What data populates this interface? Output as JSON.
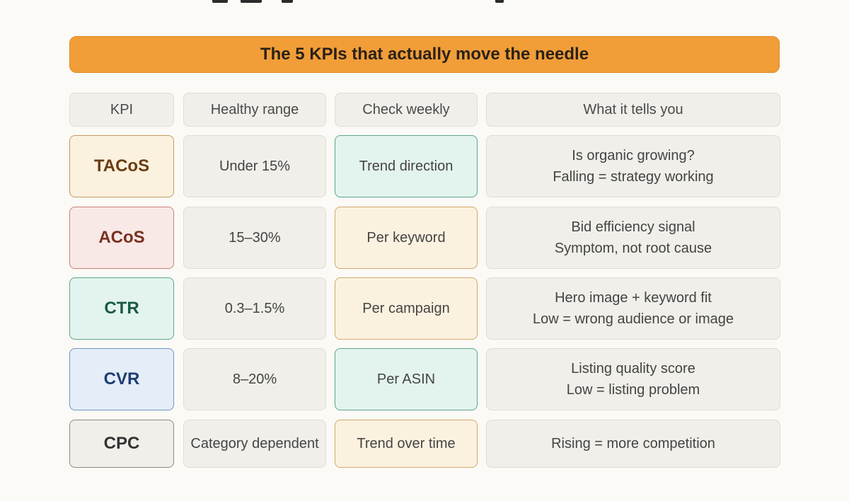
{
  "banner": {
    "title": "The 5 KPIs that actually move the needle"
  },
  "headers": {
    "kpi": "KPI",
    "range": "Healthy range",
    "check": "Check weekly",
    "meaning": "What it tells you"
  },
  "rows": [
    {
      "kpi": "TACoS",
      "range": "Under 15%",
      "check": "Trend direction",
      "meaning_line1": "Is organic growing?",
      "meaning_line2": "Falling = strategy working"
    },
    {
      "kpi": "ACoS",
      "range": "15–30%",
      "check": "Per keyword",
      "meaning_line1": "Bid efficiency signal",
      "meaning_line2": "Symptom, not root cause"
    },
    {
      "kpi": "CTR",
      "range": "0.3–1.5%",
      "check": "Per campaign",
      "meaning_line1": "Hero image + keyword fit",
      "meaning_line2": "Low = wrong audience or image"
    },
    {
      "kpi": "CVR",
      "range": "8–20%",
      "check": "Per ASIN",
      "meaning_line1": "Listing quality score",
      "meaning_line2": "Low = listing problem"
    },
    {
      "kpi": "CPC",
      "range": "Category dependent",
      "check": "Trend over time",
      "meaning_line1": "Rising = more competition"
    }
  ],
  "colors": {
    "banner": "#f19e39",
    "kpi_tacos": "#fbf1df",
    "kpi_acos": "#f8e9e6",
    "kpi_ctr": "#e3f4ee",
    "kpi_cvr": "#e4edf8",
    "kpi_cpc": "#f0efea",
    "check_green": "#e3f4ee",
    "check_amber": "#fbf1df"
  }
}
